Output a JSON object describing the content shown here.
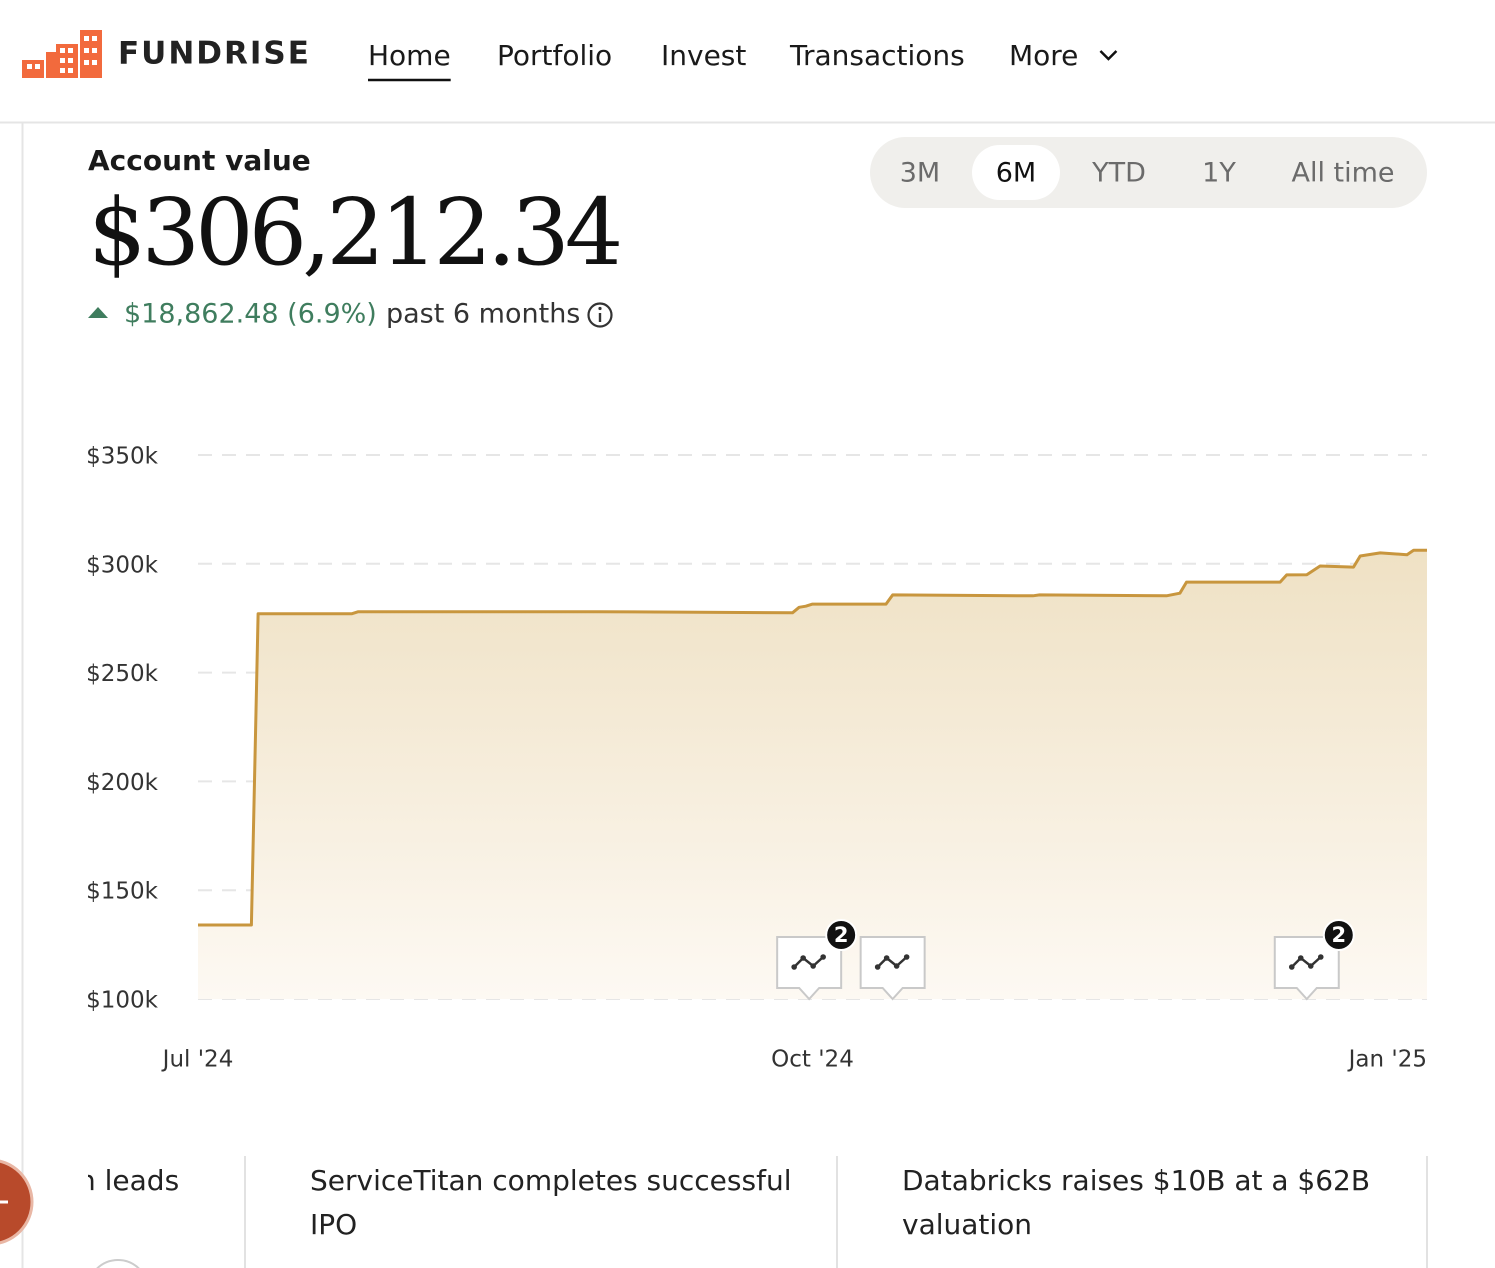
{
  "header": {
    "logo": "FUNDRISE",
    "nav": [
      "Home",
      "Portfolio",
      "Invest",
      "Transactions",
      "More"
    ],
    "active_nav": 0
  },
  "account": {
    "label": "Account value",
    "value": "$306,212.34",
    "change": "$18,862.48 (6.9%)",
    "period": "past 6 months"
  },
  "ranges": {
    "options": [
      "3M",
      "6M",
      "YTD",
      "1Y",
      "All time"
    ],
    "selected": 1
  },
  "chart_data": {
    "type": "area",
    "color": "#c8963e",
    "x": [
      0,
      8,
      9,
      23,
      24,
      60,
      89,
      90,
      91,
      92,
      103,
      104,
      125,
      126,
      145,
      147,
      148,
      162,
      163,
      166,
      168,
      173,
      174,
      177,
      181,
      182,
      184
    ],
    "values": [
      134000,
      134000,
      277000,
      277000,
      278000,
      278000,
      277500,
      280000,
      280500,
      281500,
      281500,
      285700,
      285300,
      285700,
      285300,
      286500,
      291600,
      291600,
      294900,
      295000,
      299000,
      298500,
      303600,
      305000,
      304200,
      306200,
      306212
    ],
    "xlim": [
      0,
      184
    ],
    "xticks": [
      {
        "value": 0,
        "label": "Jul '24"
      },
      {
        "value": 92,
        "label": "Oct '24"
      },
      {
        "value": 184,
        "label": "Jan '25"
      }
    ],
    "ylim": [
      100000,
      350000
    ],
    "yticks": [
      {
        "value": 100000,
        "label": "$100k"
      },
      {
        "value": 150000,
        "label": "$150k"
      },
      {
        "value": 200000,
        "label": "$200k"
      },
      {
        "value": 250000,
        "label": "$250k"
      },
      {
        "value": 300000,
        "label": "$300k"
      },
      {
        "value": 350000,
        "label": "$350k"
      }
    ],
    "grid": true,
    "events": [
      {
        "x": 91.5,
        "count": 2
      },
      {
        "x": 104
      },
      {
        "x": 166,
        "count": 2
      }
    ]
  },
  "news": [
    "n leads",
    "ServiceTitan completes successful",
    "IPO",
    "Databricks raises $10B at a $62B",
    "valuation"
  ]
}
